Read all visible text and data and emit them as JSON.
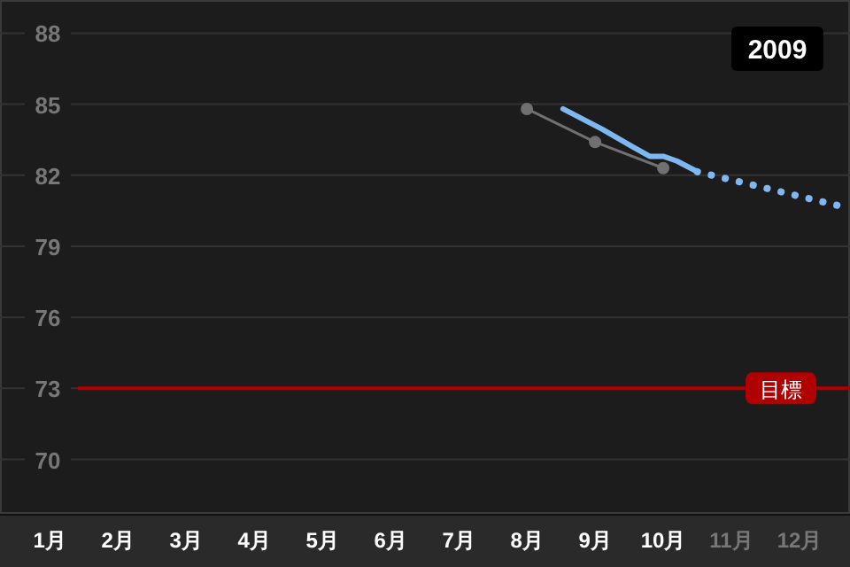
{
  "chart_data": {
    "type": "line",
    "title": "2009",
    "xlim": [
      0.27,
      12.74
    ],
    "ylim": [
      67.7,
      89.4
    ],
    "xticks": [
      {
        "value": 1,
        "label": "1月"
      },
      {
        "value": 2,
        "label": "2月"
      },
      {
        "value": 3,
        "label": "3月"
      },
      {
        "value": 4,
        "label": "4月"
      },
      {
        "value": 5,
        "label": "5月"
      },
      {
        "value": 6,
        "label": "6月"
      },
      {
        "value": 7,
        "label": "7月"
      },
      {
        "value": 8,
        "label": "8月"
      },
      {
        "value": 9,
        "label": "9月"
      },
      {
        "value": 10,
        "label": "10月"
      },
      {
        "value": 11,
        "label": "11月"
      },
      {
        "value": 12,
        "label": "12月"
      }
    ],
    "yticks": [
      70,
      73,
      76,
      79,
      82,
      85,
      88
    ],
    "grid": "y",
    "series": [
      {
        "color": "#707070",
        "marker": "circle",
        "line_style": "solid",
        "x": [
          8,
          9,
          10
        ],
        "values": [
          84.8,
          83.4,
          82.3
        ]
      },
      {
        "color": "#7fb8f0",
        "marker": "none",
        "line_style": "solid",
        "x": [
          8.53,
          9.1,
          9.55,
          9.8,
          10.0,
          10.2,
          10.5
        ],
        "values": [
          84.8,
          83.95,
          83.2,
          82.8,
          82.8,
          82.6,
          82.15
        ]
      },
      {
        "color": "#7fb8f0",
        "marker": "none",
        "line_style": "dotted",
        "x": [
          10.5,
          12.74
        ],
        "values": [
          82.15,
          80.6
        ]
      }
    ],
    "ref_lines": [
      {
        "axis": "y",
        "value": 73,
        "label": "目標",
        "color": "#b00000",
        "line_style": "solid"
      }
    ]
  }
}
